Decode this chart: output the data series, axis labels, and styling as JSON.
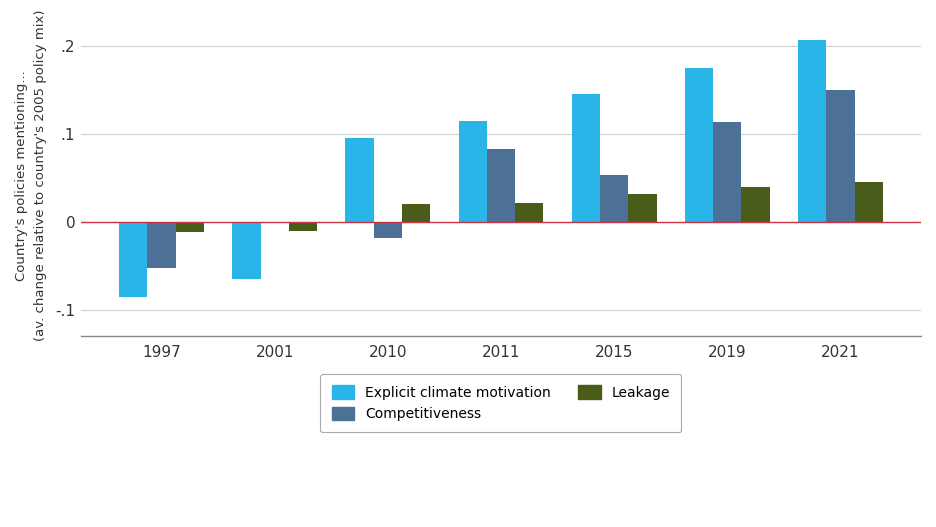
{
  "years": [
    1997,
    2001,
    2010,
    2011,
    2015,
    2019,
    2021
  ],
  "climate": [
    -0.085,
    -0.065,
    0.095,
    0.115,
    0.145,
    0.175,
    0.207
  ],
  "competitiveness": [
    -0.052,
    0.0,
    -0.018,
    0.083,
    0.053,
    0.113,
    0.15
  ],
  "leakage": [
    -0.012,
    -0.01,
    0.02,
    0.022,
    0.032,
    0.04,
    0.045
  ],
  "color_climate": "#29B5E8",
  "color_competitiveness": "#4D7096",
  "color_leakage": "#4A5C1A",
  "ylabel_line1": "Country's policies mentioning...",
  "ylabel_line2": "(av. change relative to country's 2005 policy mix)",
  "yticks": [
    -0.1,
    0.0,
    0.1,
    0.2
  ],
  "ytick_labels": [
    "-.1",
    "0",
    ".1",
    ".2"
  ],
  "ylim": [
    -0.13,
    0.235
  ],
  "bar_width": 0.25,
  "legend_labels": [
    "Explicit climate motivation",
    "Competitiveness",
    "Leakage"
  ],
  "background_color": "#ffffff",
  "zero_line_color": "#cc3344",
  "grid_color": "#d0d0d0",
  "spine_color": "#888888"
}
